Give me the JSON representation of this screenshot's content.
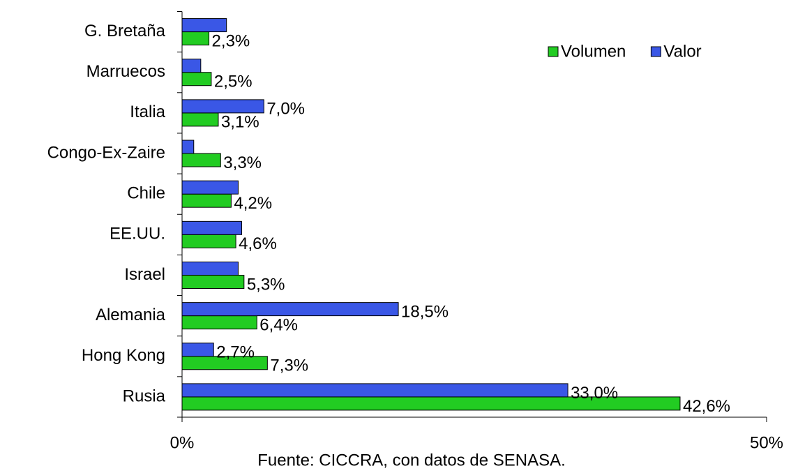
{
  "chart_data": {
    "type": "bar",
    "orientation": "horizontal",
    "categories": [
      "G. Bretaña",
      "Marruecos",
      "Italia",
      "Congo-Ex-Zaire",
      "Chile",
      "EE.UU.",
      "Israel",
      "Alemania",
      "Hong Kong",
      "Rusia"
    ],
    "series": [
      {
        "name": "Volumen",
        "color": "#22cc22",
        "values": [
          2.3,
          2.5,
          3.1,
          3.3,
          4.2,
          4.6,
          5.3,
          6.4,
          7.3,
          42.6
        ],
        "value_labels": [
          "2,3%",
          "2,5%",
          "3,1%",
          "3,3%",
          "4,2%",
          "4,6%",
          "5,3%",
          "6,4%",
          "7,3%",
          "42,6%"
        ]
      },
      {
        "name": "Valor",
        "color": "#3a57e6",
        "values": [
          3.8,
          1.6,
          7.0,
          1.0,
          4.8,
          5.1,
          4.8,
          18.5,
          2.7,
          33.0
        ],
        "value_labels": [
          null,
          null,
          "7,0%",
          null,
          null,
          null,
          null,
          "18,5%",
          "2,7%",
          "33,0%"
        ]
      }
    ],
    "xlim": [
      0,
      50
    ],
    "xticks": [
      {
        "value": 0,
        "label": "0%"
      },
      {
        "value": 50,
        "label": "50%"
      }
    ],
    "legend": "top-right",
    "note": "Fuente: CICCRA, con datos de SENASA."
  }
}
